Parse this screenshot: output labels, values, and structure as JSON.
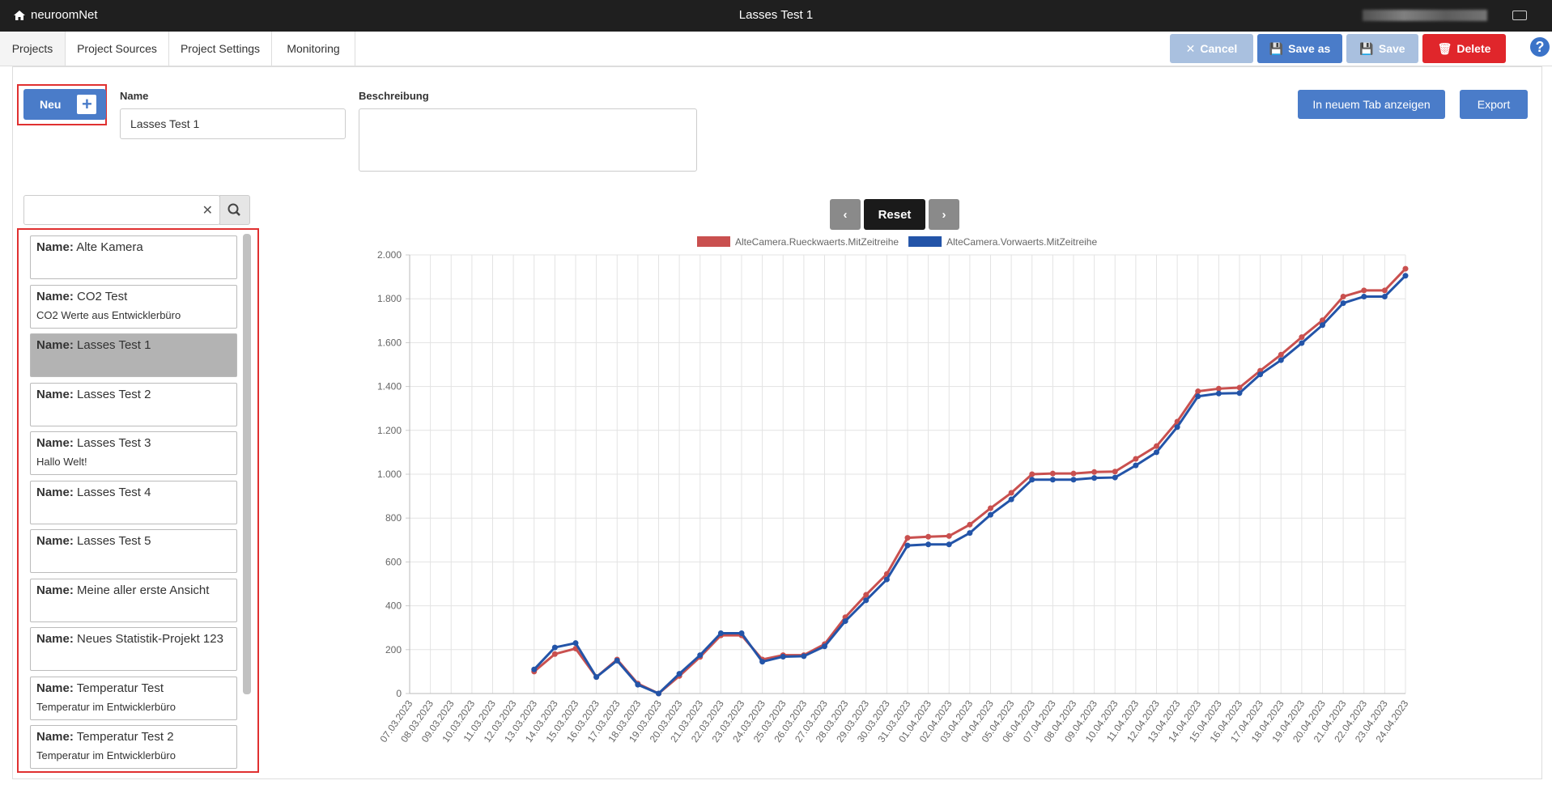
{
  "navbar": {
    "brand": "neuroomNet",
    "title": "Lasses Test 1"
  },
  "tabs": [
    "Projects",
    "Project Sources",
    "Project Settings",
    "Monitoring"
  ],
  "actions": {
    "cancel": "Cancel",
    "save_as": "Save as",
    "save": "Save",
    "delete": "Delete"
  },
  "form": {
    "new_button": "Neu",
    "name_label": "Name",
    "name_value": "Lasses Test 1",
    "description_label": "Beschreibung",
    "open_tab_button": "In neuem Tab anzeigen",
    "export_button": "Export"
  },
  "project_list": {
    "name_prefix": "Name:",
    "selected": 2,
    "items": [
      {
        "name": "Alte Kamera"
      },
      {
        "name": "CO2 Test",
        "description": "CO2 Werte aus Entwicklerbüro"
      },
      {
        "name": "Lasses Test 1"
      },
      {
        "name": "Lasses Test 2"
      },
      {
        "name": "Lasses Test 3",
        "description": "Hallo Welt!"
      },
      {
        "name": "Lasses Test 4"
      },
      {
        "name": "Lasses Test 5"
      },
      {
        "name": "Meine aller erste Ansicht"
      },
      {
        "name": "Neues Statistik-Projekt 123"
      },
      {
        "name": "Temperatur Test",
        "description": "Temperatur im Entwicklerbüro"
      },
      {
        "name": "Temperatur Test 2",
        "description": "Temperatur im Entwicklerbüro"
      }
    ]
  },
  "chart_nav": {
    "reset": "Reset"
  },
  "chart_data": {
    "type": "line",
    "grid": true,
    "x": [
      "07.03.2023",
      "08.03.2023",
      "09.03.2023",
      "10.03.2023",
      "11.03.2023",
      "12.03.2023",
      "13.03.2023",
      "14.03.2023",
      "15.03.2023",
      "16.03.2023",
      "17.03.2023",
      "18.03.2023",
      "19.03.2023",
      "20.03.2023",
      "21.03.2023",
      "22.03.2023",
      "23.03.2023",
      "24.03.2023",
      "25.03.2023",
      "26.03.2023",
      "27.03.2023",
      "28.03.2023",
      "29.03.2023",
      "30.03.2023",
      "31.03.2023",
      "01.04.2023",
      "02.04.2023",
      "03.04.2023",
      "04.04.2023",
      "05.04.2023",
      "06.04.2023",
      "07.04.2023",
      "08.04.2023",
      "09.04.2023",
      "10.04.2023",
      "11.04.2023",
      "12.04.2023",
      "13.04.2023",
      "14.04.2023",
      "15.04.2023",
      "16.04.2023",
      "17.04.2023",
      "18.04.2023",
      "19.04.2023",
      "20.04.2023",
      "21.04.2023",
      "22.04.2023",
      "23.04.2023",
      "24.04.2023"
    ],
    "series": [
      {
        "name": "AlteCamera.Rueckwaerts.MitZeitreihe",
        "color": "#c9504f",
        "values": [
          null,
          null,
          null,
          null,
          null,
          null,
          100,
          180,
          205,
          75,
          155,
          45,
          0,
          80,
          167,
          265,
          265,
          155,
          175,
          175,
          225,
          348,
          450,
          545,
          710,
          715,
          718,
          770,
          845,
          915,
          1000,
          1003,
          1003,
          1010,
          1012,
          1070,
          1128,
          1240,
          1378,
          1390,
          1395,
          1472,
          1545,
          1625,
          1702,
          1810,
          1838,
          1838,
          1937
        ]
      },
      {
        "name": "AlteCamera.Vorwaerts.MitZeitreihe",
        "color": "#2354a8",
        "values": [
          null,
          null,
          null,
          null,
          null,
          null,
          110,
          210,
          230,
          75,
          150,
          40,
          0,
          90,
          175,
          275,
          275,
          145,
          168,
          170,
          215,
          330,
          425,
          520,
          675,
          680,
          680,
          732,
          815,
          885,
          975,
          975,
          975,
          983,
          985,
          1040,
          1100,
          1215,
          1355,
          1368,
          1370,
          1455,
          1520,
          1598,
          1680,
          1780,
          1810,
          1810,
          1905
        ]
      }
    ],
    "ylim": [
      0,
      2000
    ],
    "yticks": [
      0,
      200,
      400,
      600,
      800,
      {
        "value": 1000,
        "label": "1.000"
      },
      {
        "value": 1200,
        "label": "1.200"
      },
      {
        "value": 1400,
        "label": "1.400"
      },
      {
        "value": 1600,
        "label": "1.600"
      },
      {
        "value": 1800,
        "label": "1.800"
      },
      {
        "value": 2000,
        "label": "2.000"
      }
    ]
  }
}
